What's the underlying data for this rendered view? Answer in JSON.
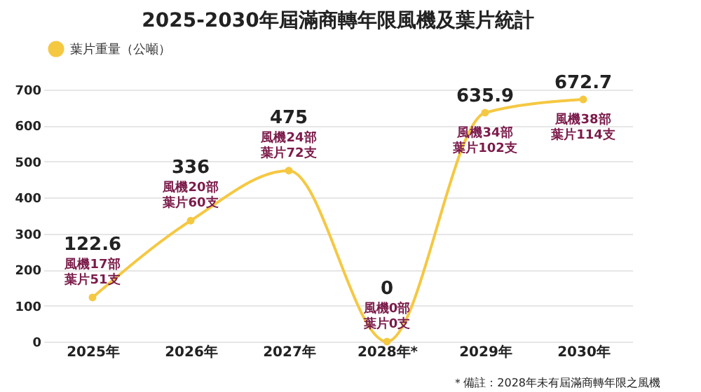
{
  "chart_data": {
    "type": "line",
    "title": "2025-2030年屆滿商轉年限風機及葉片統計",
    "categories": [
      "2025年",
      "2026年",
      "2027年",
      "2028年*",
      "2029年",
      "2030年"
    ],
    "series": [
      {
        "name": "葉片重量（公噸）",
        "color": "#f5c842",
        "values": [
          122.6,
          336,
          475,
          0,
          635.9,
          672.7
        ]
      }
    ],
    "ylim": [
      0,
      700
    ],
    "yticks": [
      0,
      100,
      200,
      300,
      400,
      500,
      600,
      700
    ],
    "grid": "y",
    "legend": "top",
    "marker": "circle",
    "line_style": "solid",
    "data_labels": true,
    "annotations": [
      {
        "text": "風機17部",
        "x": "2025年",
        "y": 122.6
      },
      {
        "text": "葉片51支",
        "x": "2025年",
        "y": 122.6
      },
      {
        "text": "風機20部",
        "x": "2026年",
        "y": 336
      },
      {
        "text": "葉片60支",
        "x": "2026年",
        "y": 336
      },
      {
        "text": "風機24部",
        "x": "2027年",
        "y": 475
      },
      {
        "text": "葉片72支",
        "x": "2027年",
        "y": 475
      },
      {
        "text": "風機0部",
        "x": "2028年*",
        "y": 0
      },
      {
        "text": "葉片0支",
        "x": "2028年*",
        "y": 0
      },
      {
        "text": "風機34部",
        "x": "2029年",
        "y": 635.9
      },
      {
        "text": "葉片102支",
        "x": "2029年",
        "y": 635.9
      },
      {
        "text": "風機38部",
        "x": "2030年",
        "y": 672.7
      },
      {
        "text": "葉片114支",
        "x": "2030年",
        "y": 672.7
      },
      "＊備註：2028年未有屆滿商轉年限之風機"
    ]
  }
}
